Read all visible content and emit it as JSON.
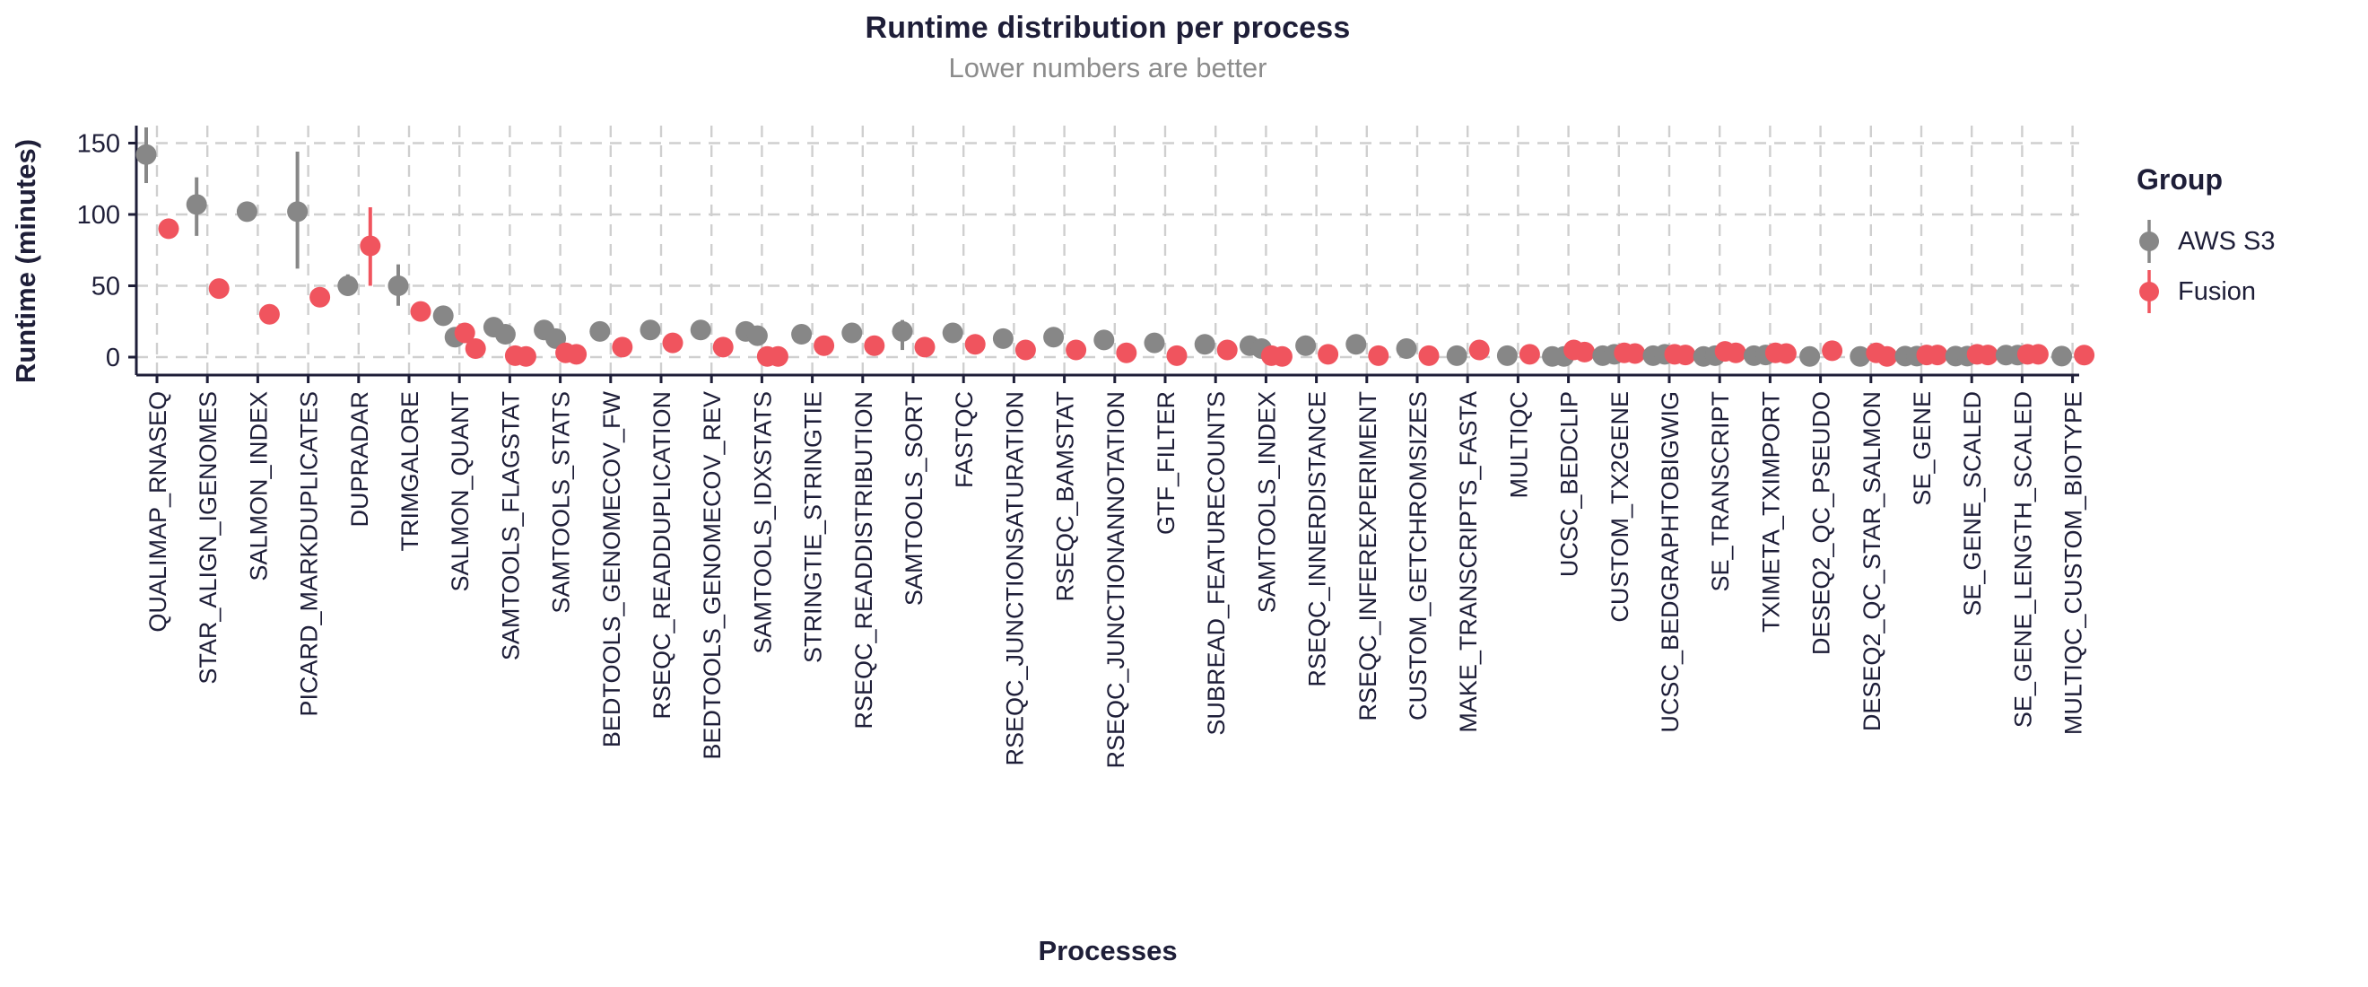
{
  "chart_data": {
    "type": "scatter",
    "title": "Runtime distribution per process",
    "subtitle": "Lower numbers are better",
    "xlabel": "Processes",
    "ylabel": "Runtime (minutes)",
    "unit": "minutes",
    "ylim": [
      0,
      165
    ],
    "yticks": [
      0,
      50,
      100,
      150
    ],
    "grid": "dashed",
    "colors": {
      "aws_s3": "#878787",
      "fusion": "#F0545E",
      "axis": "#1E1E38",
      "gridline": "#CFCFCF",
      "subtitle": "#8C8C8C"
    },
    "legend": {
      "title": "Group",
      "position": "right",
      "entries": [
        {
          "key": "aws_s3",
          "label": "AWS S3",
          "color": "#878787"
        },
        {
          "key": "fusion",
          "label": "Fusion",
          "color": "#F0545E"
        }
      ]
    },
    "processes": [
      {
        "name": "QUALIMAP_RNASEQ",
        "aws_s3": {
          "points": [
            142
          ],
          "range": [
            122,
            161
          ]
        },
        "fusion": {
          "points": [
            90
          ],
          "range": [
            83,
            96
          ]
        }
      },
      {
        "name": "STAR_ALIGN_IGENOMES",
        "aws_s3": {
          "points": [
            107
          ],
          "range": [
            85,
            126
          ]
        },
        "fusion": {
          "points": [
            48
          ]
        }
      },
      {
        "name": "SALMON_INDEX",
        "aws_s3": {
          "points": [
            102
          ]
        },
        "fusion": {
          "points": [
            30
          ]
        }
      },
      {
        "name": "PICARD_MARKDUPLICATES",
        "aws_s3": {
          "points": [
            102
          ],
          "range": [
            62,
            144
          ]
        },
        "fusion": {
          "points": [
            42
          ]
        }
      },
      {
        "name": "DUPRADAR",
        "aws_s3": {
          "points": [
            50
          ],
          "range": [
            43,
            58
          ]
        },
        "fusion": {
          "points": [
            78
          ],
          "range": [
            50,
            105
          ]
        }
      },
      {
        "name": "TRIMGALORE",
        "aws_s3": {
          "points": [
            50
          ],
          "range": [
            36,
            65
          ]
        },
        "fusion": {
          "points": [
            32
          ]
        }
      },
      {
        "name": "SALMON_QUANT",
        "aws_s3": {
          "points": [
            29,
            14
          ]
        },
        "fusion": {
          "points": [
            17,
            6
          ]
        }
      },
      {
        "name": "SAMTOOLS_FLAGSTAT",
        "aws_s3": {
          "points": [
            21,
            16
          ]
        },
        "fusion": {
          "points": [
            1,
            0.5
          ]
        }
      },
      {
        "name": "SAMTOOLS_STATS",
        "aws_s3": {
          "points": [
            19,
            13
          ]
        },
        "fusion": {
          "points": [
            3,
            2
          ]
        }
      },
      {
        "name": "BEDTOOLS_GENOMECOV_FW",
        "aws_s3": {
          "points": [
            18
          ]
        },
        "fusion": {
          "points": [
            7
          ]
        }
      },
      {
        "name": "RSEQC_READDUPLICATION",
        "aws_s3": {
          "points": [
            19
          ]
        },
        "fusion": {
          "points": [
            10
          ]
        }
      },
      {
        "name": "BEDTOOLS_GENOMECOV_REV",
        "aws_s3": {
          "points": [
            19
          ]
        },
        "fusion": {
          "points": [
            7
          ]
        }
      },
      {
        "name": "SAMTOOLS_IDXSTATS",
        "aws_s3": {
          "points": [
            18,
            15
          ],
          "range": [
            11,
            20
          ]
        },
        "fusion": {
          "points": [
            0.5,
            0.5
          ]
        }
      },
      {
        "name": "STRINGTIE_STRINGTIE",
        "aws_s3": {
          "points": [
            16
          ]
        },
        "fusion": {
          "points": [
            8
          ]
        }
      },
      {
        "name": "RSEQC_READDISTRIBUTION",
        "aws_s3": {
          "points": [
            17
          ]
        },
        "fusion": {
          "points": [
            8
          ]
        }
      },
      {
        "name": "SAMTOOLS_SORT",
        "aws_s3": {
          "points": [
            18
          ],
          "range": [
            5,
            26
          ]
        },
        "fusion": {
          "points": [
            7
          ]
        }
      },
      {
        "name": "FASTQC",
        "aws_s3": {
          "points": [
            17
          ]
        },
        "fusion": {
          "points": [
            9
          ]
        }
      },
      {
        "name": "RSEQC_JUNCTIONSATURATION",
        "aws_s3": {
          "points": [
            13
          ]
        },
        "fusion": {
          "points": [
            5
          ]
        }
      },
      {
        "name": "RSEQC_BAMSTAT",
        "aws_s3": {
          "points": [
            14
          ]
        },
        "fusion": {
          "points": [
            5
          ]
        }
      },
      {
        "name": "RSEQC_JUNCTIONANNOTATION",
        "aws_s3": {
          "points": [
            12
          ]
        },
        "fusion": {
          "points": [
            3
          ]
        }
      },
      {
        "name": "GTF_FILTER",
        "aws_s3": {
          "points": [
            10
          ]
        },
        "fusion": {
          "points": [
            1
          ]
        }
      },
      {
        "name": "SUBREAD_FEATURECOUNTS",
        "aws_s3": {
          "points": [
            9
          ]
        },
        "fusion": {
          "points": [
            5
          ]
        }
      },
      {
        "name": "SAMTOOLS_INDEX",
        "aws_s3": {
          "points": [
            8,
            6
          ]
        },
        "fusion": {
          "points": [
            1,
            0.5
          ]
        }
      },
      {
        "name": "RSEQC_INNERDISTANCE",
        "aws_s3": {
          "points": [
            8
          ]
        },
        "fusion": {
          "points": [
            2
          ]
        }
      },
      {
        "name": "RSEQC_INFEREXPERIMENT",
        "aws_s3": {
          "points": [
            9
          ],
          "range": [
            3,
            15
          ]
        },
        "fusion": {
          "points": [
            1
          ]
        }
      },
      {
        "name": "CUSTOM_GETCHROMSIZES",
        "aws_s3": {
          "points": [
            6
          ]
        },
        "fusion": {
          "points": [
            1
          ]
        }
      },
      {
        "name": "MAKE_TRANSCRIPTS_FASTA",
        "aws_s3": {
          "points": [
            1
          ]
        },
        "fusion": {
          "points": [
            5
          ]
        }
      },
      {
        "name": "MULTIQC",
        "aws_s3": {
          "points": [
            1
          ]
        },
        "fusion": {
          "points": [
            2
          ]
        }
      },
      {
        "name": "UCSC_BEDCLIP",
        "aws_s3": {
          "points": [
            0.5,
            0.5
          ]
        },
        "fusion": {
          "points": [
            5,
            3.5
          ]
        }
      },
      {
        "name": "CUSTOM_TX2GENE",
        "aws_s3": {
          "points": [
            1,
            2
          ]
        },
        "fusion": {
          "points": [
            3,
            2.5
          ]
        }
      },
      {
        "name": "UCSC_BEDGRAPHTOBIGWIG",
        "aws_s3": {
          "points": [
            1,
            2
          ]
        },
        "fusion": {
          "points": [
            2,
            1.5
          ]
        }
      },
      {
        "name": "SE_TRANSCRIPT",
        "aws_s3": {
          "points": [
            0.5,
            1
          ]
        },
        "fusion": {
          "points": [
            4,
            3
          ]
        }
      },
      {
        "name": "TXIMETA_TXIMPORT",
        "aws_s3": {
          "points": [
            1,
            1.5
          ]
        },
        "fusion": {
          "points": [
            3,
            2.5
          ]
        }
      },
      {
        "name": "DESEQ2_QC_PSEUDO",
        "aws_s3": {
          "points": [
            0.5
          ]
        },
        "fusion": {
          "points": [
            4.5
          ]
        }
      },
      {
        "name": "DESEQ2_QC_STAR_SALMON",
        "aws_s3": {
          "points": [
            0.5
          ]
        },
        "fusion": {
          "points": [
            3,
            0.5
          ]
        }
      },
      {
        "name": "SE_GENE",
        "aws_s3": {
          "points": [
            0.7,
            0.7
          ]
        },
        "fusion": {
          "points": [
            1.5,
            1.5
          ]
        }
      },
      {
        "name": "SE_GENE_SCALED",
        "aws_s3": {
          "points": [
            0.7,
            0.7
          ]
        },
        "fusion": {
          "points": [
            2,
            1.5
          ]
        }
      },
      {
        "name": "SE_GENE_LENGTH_SCALED",
        "aws_s3": {
          "points": [
            1.4,
            1.4
          ]
        },
        "fusion": {
          "points": [
            2,
            2
          ]
        }
      },
      {
        "name": "MULTIQC_CUSTOM_BIOTYPE",
        "aws_s3": {
          "points": [
            0.7
          ]
        },
        "fusion": {
          "points": [
            1.4
          ]
        }
      }
    ]
  }
}
